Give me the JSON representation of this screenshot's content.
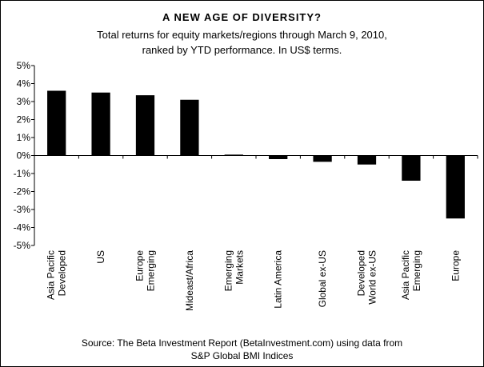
{
  "chart_data": {
    "type": "bar",
    "title": "A NEW AGE OF DIVERSITY?",
    "subtitle": [
      "Total returns for equity markets/regions through March 9, 2010,",
      "ranked by YTD performance. In US$ terms."
    ],
    "categories": [
      [
        "Asia Pacific",
        "Developed"
      ],
      [
        "US"
      ],
      [
        "Europe",
        "Emerging"
      ],
      [
        "Mideast/Africa"
      ],
      [
        "Emerging",
        "Markets"
      ],
      [
        "Latin America"
      ],
      [
        "Global ex-US"
      ],
      [
        "Developed",
        "World ex-US"
      ],
      [
        "Asia Pacific",
        "Emerging"
      ],
      [
        "Europe"
      ]
    ],
    "values": [
      3.6,
      3.5,
      3.35,
      3.1,
      0.05,
      -0.2,
      -0.35,
      -0.5,
      -1.4,
      -3.5
    ],
    "ylim": [
      -5,
      5
    ],
    "yticks": [
      5,
      4,
      3,
      2,
      1,
      0,
      -1,
      -2,
      -3,
      -4,
      -5
    ],
    "ytick_suffix": "%",
    "bar_color": "#000000",
    "grid": false,
    "source": [
      "Source: The Beta Investment Report (BetaInvestment.com) using data from",
      "S&P Global BMI Indices"
    ]
  }
}
